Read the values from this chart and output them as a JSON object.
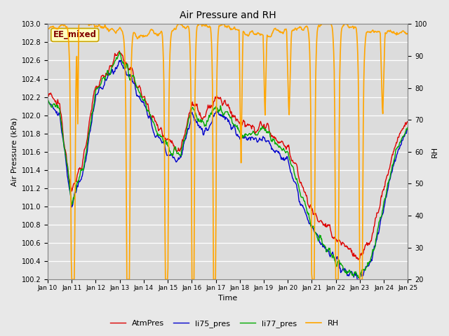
{
  "title": "Air Pressure and RH",
  "xlabel": "Time",
  "ylabel_left": "Air Pressure (kPa)",
  "ylabel_right": "RH",
  "ylim_left": [
    100.2,
    103.0
  ],
  "ylim_right": [
    20,
    100
  ],
  "fig_bg_color": "#e8e8e8",
  "plot_bg_color": "#dcdcdc",
  "annotation_text": "EE_mixed",
  "annotation_bg": "#ffffc0",
  "annotation_edge": "#c8a000",
  "annotation_color": "#800000",
  "colors": {
    "AtmPres": "#dd0000",
    "li75_pres": "#0000cc",
    "li77_pres": "#00aa00",
    "RH": "#ffa500"
  },
  "linewidths": {
    "AtmPres": 1.0,
    "li75_pres": 1.0,
    "li77_pres": 1.0,
    "RH": 1.2
  },
  "xtick_labels": [
    "Jan 10",
    "Jan 11",
    "Jan 12",
    "Jan 13",
    "Jan 14",
    "Jan 15",
    "Jan 16",
    "Jan 17",
    "Jan 18",
    "Jan 19",
    "Jan 20",
    "Jan 21",
    "Jan 22",
    "Jan 23",
    "Jan 24",
    "Jan 25"
  ],
  "yticks_left": [
    100.2,
    100.4,
    100.6,
    100.8,
    101.0,
    101.2,
    101.4,
    101.6,
    101.8,
    102.0,
    102.2,
    102.4,
    102.6,
    102.8,
    103.0
  ],
  "yticks_right": [
    20,
    30,
    40,
    50,
    60,
    70,
    80,
    90,
    100
  ],
  "n_points": 720
}
